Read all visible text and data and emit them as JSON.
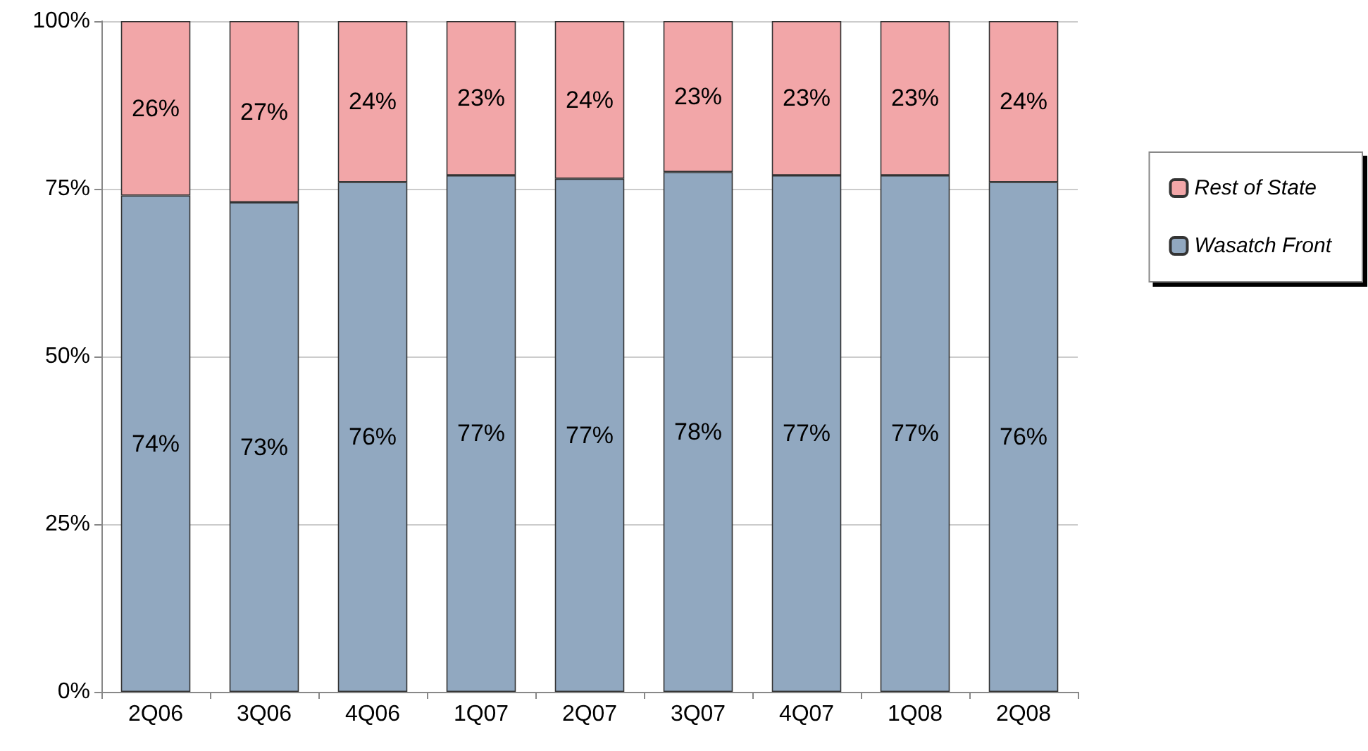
{
  "chart_data": {
    "type": "bar",
    "stacked": true,
    "categories": [
      "2Q06",
      "3Q06",
      "4Q06",
      "1Q07",
      "2Q07",
      "3Q07",
      "4Q07",
      "1Q08",
      "2Q08"
    ],
    "series": [
      {
        "name": "Wasatch Front",
        "color": "#91a8c0",
        "values": [
          74,
          73,
          76,
          77,
          76.5,
          77.5,
          77,
          77,
          76
        ],
        "value_labels": [
          "74%",
          "73%",
          "76%",
          "77%",
          "77%",
          "78%",
          "77%",
          "77%",
          "76%"
        ]
      },
      {
        "name": "Rest of State",
        "color": "#f2a6a8",
        "values": [
          26,
          27,
          24,
          23,
          23.5,
          22.5,
          23,
          23,
          24
        ],
        "value_labels": [
          "26%",
          "27%",
          "24%",
          "23%",
          "24%",
          "23%",
          "23%",
          "23%",
          "24%"
        ]
      }
    ],
    "ylim": [
      0,
      100
    ],
    "yticks": [
      {
        "value": 0,
        "label": "0%"
      },
      {
        "value": 25,
        "label": "25%"
      },
      {
        "value": 50,
        "label": "50%"
      },
      {
        "value": 75,
        "label": "75%"
      },
      {
        "value": 100,
        "label": "100%"
      }
    ],
    "grid": "y",
    "legend": "right"
  }
}
